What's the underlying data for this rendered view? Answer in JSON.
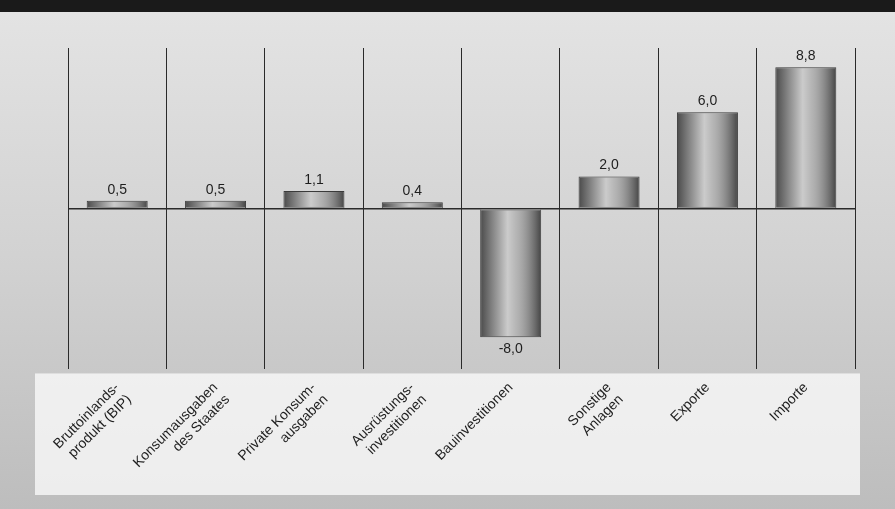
{
  "chart_data": {
    "type": "bar",
    "categories": [
      "Bruttoinlands-\nprodukt (BIP)",
      "Konsumausgaben\ndes Staates",
      "Private Konsum-\nausgaben",
      "Ausrüstungs-\ninvestitionen",
      "Bauinvestitionen",
      "Sonstige\nAnlagen",
      "Exporte",
      "Importe"
    ],
    "values": [
      0.5,
      0.5,
      1.1,
      0.4,
      -8.0,
      2.0,
      6.0,
      8.8
    ],
    "value_labels": [
      "0,5",
      "0,5",
      "1,1",
      "0,4",
      "-8,0",
      "2,0",
      "6,0",
      "8,8"
    ],
    "color": "#8c8c8c",
    "ylim": [
      -10,
      10
    ],
    "yticks": [
      0
    ],
    "grid": true,
    "data_labels": true,
    "tick_labels": "x"
  }
}
